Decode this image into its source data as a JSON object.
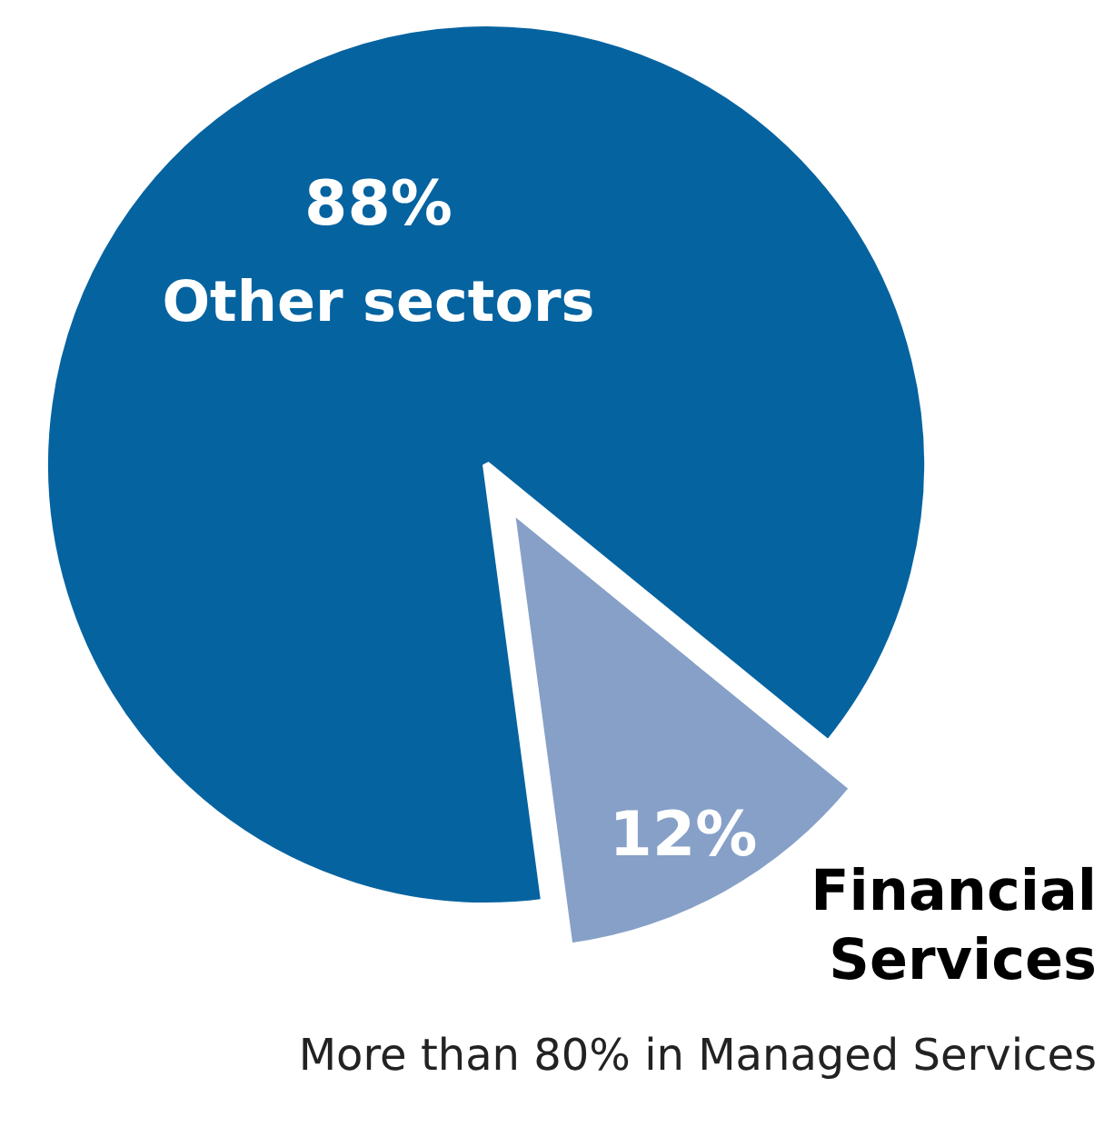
{
  "chart_data": {
    "type": "pie",
    "categories": [
      "Financial Services",
      "Other sectors"
    ],
    "values": [
      12,
      88
    ],
    "colors": [
      "#86a0c8",
      "#0563a0"
    ],
    "value_labels": [
      "12%",
      "88%"
    ],
    "annotations": [
      "More than 80% in Managed Services"
    ]
  }
}
